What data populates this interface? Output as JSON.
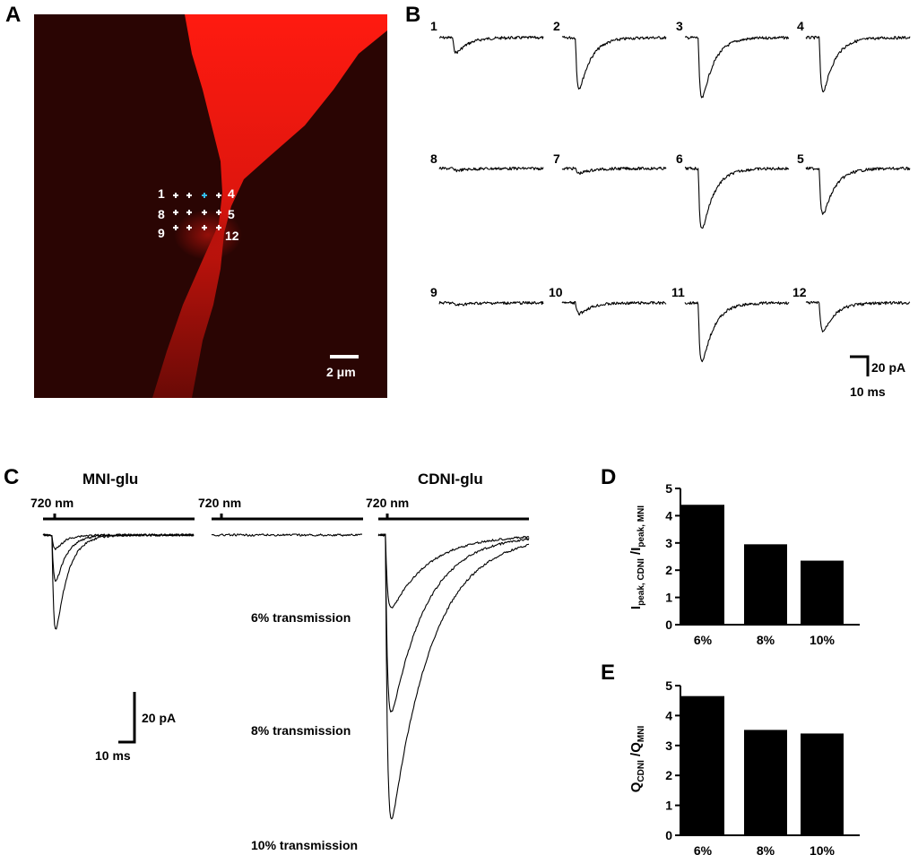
{
  "panels": {
    "A": "A",
    "B": "B",
    "C": "C",
    "D": "D",
    "E": "E"
  },
  "panel_a": {
    "spot_labels": [
      "1",
      "4",
      "8",
      "5",
      "9",
      "12"
    ],
    "scale_label": "2 μm",
    "colors": {
      "background": "#2a0503",
      "dendrite": "#ff1a10",
      "highlight_spot": "#33bbee"
    }
  },
  "panel_b": {
    "trace_labels": [
      "1",
      "2",
      "3",
      "4",
      "8",
      "7",
      "6",
      "5",
      "9",
      "10",
      "11",
      "12"
    ],
    "relative_amplitudes": [
      0.22,
      0.75,
      0.9,
      0.8,
      0.03,
      0.07,
      0.9,
      0.68,
      0.03,
      0.16,
      0.88,
      0.42
    ],
    "highlight_color": "#22ddee",
    "scale_y": "20 pA",
    "scale_x": "10 ms"
  },
  "panel_c": {
    "title_mni": "MNI-glu",
    "title_cdni": "CDNI-glu",
    "laser_labels": [
      "720 nm",
      "720 nm",
      "720 nm"
    ],
    "transmission_labels": [
      "6% transmission",
      "8% transmission",
      "10% transmission"
    ],
    "scale_y": "20 pA",
    "scale_x": "10 ms"
  },
  "chart_data": [
    {
      "type": "bar",
      "panel": "D",
      "categories": [
        "6%",
        "8%",
        "10%"
      ],
      "values": [
        4.4,
        2.95,
        2.35
      ],
      "ylabel": "I peak, CDNI /I peak, MNI",
      "ylim": [
        0,
        5
      ],
      "yticks": [
        "0",
        "1",
        "2",
        "3",
        "4",
        "5"
      ]
    },
    {
      "type": "bar",
      "panel": "E",
      "categories": [
        "6%",
        "8%",
        "10%"
      ],
      "values": [
        4.65,
        3.52,
        3.4
      ],
      "ylabel": "Q CDNI /Q MNI",
      "ylim": [
        0,
        5
      ],
      "yticks": [
        "0",
        "1",
        "2",
        "3",
        "4",
        "5"
      ]
    }
  ]
}
